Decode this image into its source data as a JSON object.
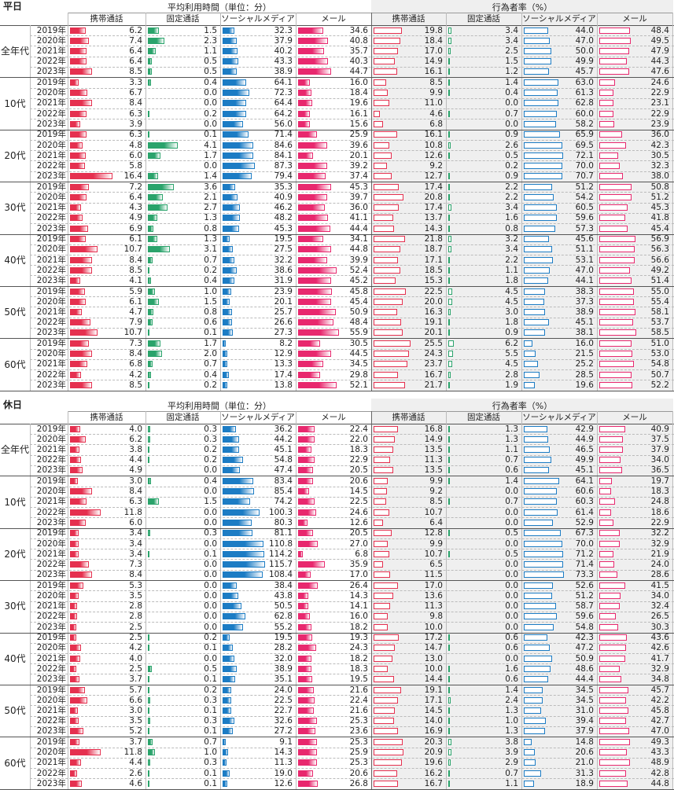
{
  "chart_data": [
    {
      "type": "table",
      "title": "平日",
      "group_headers": [
        "平均利用時間（単位：分）",
        "行為者率（%）"
      ],
      "columns": [
        "携帯通話",
        "固定通話",
        "ソーシャルメディア",
        "メール"
      ],
      "age_groups": [
        "全年代",
        "10代",
        "20代",
        "30代",
        "40代",
        "50代",
        "60代"
      ],
      "years": [
        "2019年",
        "2020年",
        "2021年",
        "2022年",
        "2023年"
      ],
      "time_values": [
        [
          [
            6.2,
            1.5,
            32.3,
            34.6
          ],
          [
            7.4,
            2.3,
            37.9,
            40.8
          ],
          [
            6.4,
            1.1,
            40.2,
            35.7
          ],
          [
            6.4,
            0.5,
            43.3,
            40.3
          ],
          [
            8.5,
            0.5,
            38.9,
            44.7
          ]
        ],
        [
          [
            3.3,
            0.4,
            64.1,
            16.0
          ],
          [
            6.7,
            0.0,
            72.3,
            18.4
          ],
          [
            8.4,
            0.0,
            64.4,
            19.6
          ],
          [
            6.3,
            0.2,
            64.2,
            16.1
          ],
          [
            3.9,
            0.0,
            56.0,
            15.6
          ]
        ],
        [
          [
            6.3,
            0.1,
            71.4,
            25.9
          ],
          [
            4.8,
            4.1,
            84.6,
            39.6
          ],
          [
            6.0,
            1.7,
            84.1,
            20.1
          ],
          [
            5.8,
            0.0,
            87.3,
            39.2
          ],
          [
            16.4,
            1.4,
            79.4,
            37.4
          ]
        ],
        [
          [
            7.2,
            3.6,
            35.3,
            45.3
          ],
          [
            6.4,
            2.1,
            40.9,
            39.7
          ],
          [
            4.3,
            2.7,
            46.2,
            36.0
          ],
          [
            4.9,
            1.3,
            48.2,
            41.1
          ],
          [
            6.9,
            0.8,
            45.3,
            44.4
          ]
        ],
        [
          [
            6.1,
            1.3,
            19.5,
            34.1
          ],
          [
            10.7,
            3.1,
            27.5,
            44.8
          ],
          [
            8.4,
            0.7,
            32.2,
            39.9
          ],
          [
            8.5,
            0.2,
            38.6,
            52.4
          ],
          [
            4.1,
            0.4,
            31.9,
            45.2
          ]
        ],
        [
          [
            5.9,
            1.0,
            23.9,
            45.8
          ],
          [
            6.1,
            1.5,
            20.1,
            45.4
          ],
          [
            4.7,
            0.8,
            25.7,
            50.9
          ],
          [
            7.9,
            0.6,
            26.6,
            48.4
          ],
          [
            10.7,
            0.1,
            27.3,
            55.9
          ]
        ],
        [
          [
            7.3,
            1.7,
            8.2,
            30.5
          ],
          [
            8.4,
            2.0,
            12.9,
            44.5
          ],
          [
            6.8,
            0.7,
            13.3,
            34.5
          ],
          [
            4.2,
            0.4,
            17.4,
            29.8
          ],
          [
            8.5,
            0.2,
            13.8,
            52.1
          ]
        ]
      ],
      "rate_values": [
        [
          [
            19.8,
            3.4,
            44.0,
            48.4
          ],
          [
            18.4,
            3.4,
            47.0,
            49.5
          ],
          [
            17.0,
            2.5,
            50.0,
            47.9
          ],
          [
            14.9,
            1.5,
            49.9,
            44.3
          ],
          [
            16.1,
            1.2,
            45.7,
            47.6
          ]
        ],
        [
          [
            8.5,
            1.4,
            63.0,
            24.6
          ],
          [
            9.9,
            0.4,
            61.3,
            22.9
          ],
          [
            11.0,
            0.0,
            62.8,
            23.1
          ],
          [
            4.6,
            0.7,
            60.0,
            22.9
          ],
          [
            6.8,
            0.0,
            58.2,
            23.9
          ]
        ],
        [
          [
            16.1,
            0.9,
            65.9,
            36.0
          ],
          [
            10.8,
            2.6,
            69.5,
            42.3
          ],
          [
            12.6,
            0.5,
            72.1,
            30.5
          ],
          [
            9.2,
            0.2,
            70.0,
            32.3
          ],
          [
            12.7,
            0.9,
            70.7,
            38.0
          ]
        ],
        [
          [
            17.4,
            2.2,
            51.2,
            50.8
          ],
          [
            20.8,
            2.2,
            54.2,
            51.2
          ],
          [
            17.4,
            3.4,
            60.5,
            45.3
          ],
          [
            13.7,
            1.6,
            59.6,
            41.8
          ],
          [
            14.3,
            0.8,
            57.3,
            45.4
          ]
        ],
        [
          [
            21.8,
            3.2,
            45.6,
            56.9
          ],
          [
            18.7,
            3.4,
            51.1,
            56.3
          ],
          [
            17.1,
            2.2,
            53.1,
            56.6
          ],
          [
            18.5,
            1.1,
            47.0,
            49.2
          ],
          [
            15.3,
            1.8,
            44.1,
            51.4
          ]
        ],
        [
          [
            22.5,
            4.5,
            38.3,
            55.0
          ],
          [
            20.0,
            4.5,
            37.3,
            55.4
          ],
          [
            16.3,
            3.0,
            38.9,
            58.1
          ],
          [
            19.1,
            1.8,
            45.1,
            53.7
          ],
          [
            20.1,
            0.9,
            38.1,
            58.5
          ]
        ],
        [
          [
            25.5,
            6.2,
            16.0,
            51.0
          ],
          [
            24.3,
            5.5,
            21.5,
            53.0
          ],
          [
            23.7,
            4.5,
            25.2,
            54.8
          ],
          [
            16.7,
            2.8,
            28.5,
            50.7
          ],
          [
            21.7,
            1.9,
            19.6,
            52.2
          ]
        ]
      ]
    },
    {
      "type": "table",
      "title": "休日",
      "group_headers": [
        "平均利用時間（単位：分）",
        "行為者率（%）"
      ],
      "columns": [
        "携帯通話",
        "固定通話",
        "ソーシャルメディア",
        "メール"
      ],
      "age_groups": [
        "全年代",
        "10代",
        "20代",
        "30代",
        "40代",
        "50代",
        "60代"
      ],
      "years": [
        "2019年",
        "2020年",
        "2021年",
        "2022年",
        "2023年"
      ],
      "time_values": [
        [
          [
            4.0,
            0.3,
            36.2,
            22.4
          ],
          [
            6.2,
            0.3,
            44.2,
            22.0
          ],
          [
            3.8,
            0.2,
            45.1,
            18.3
          ],
          [
            4.4,
            0.2,
            54.8,
            22.9
          ],
          [
            4.9,
            0.0,
            47.4,
            20.5
          ]
        ],
        [
          [
            3.0,
            0.4,
            83.4,
            20.6
          ],
          [
            8.4,
            0.0,
            85.4,
            14.5
          ],
          [
            6.3,
            1.5,
            74.2,
            22.5
          ],
          [
            11.8,
            0.0,
            100.3,
            24.6
          ],
          [
            6.0,
            0.0,
            80.3,
            12.6
          ]
        ],
        [
          [
            3.4,
            0.3,
            81.1,
            20.5
          ],
          [
            3.4,
            0.0,
            110.8,
            27.0
          ],
          [
            3.4,
            0.1,
            114.2,
            6.8
          ],
          [
            7.3,
            0.0,
            115.7,
            35.9
          ],
          [
            8.4,
            0.0,
            108.4,
            17.0
          ]
        ],
        [
          [
            5.3,
            0.0,
            38.4,
            26.4
          ],
          [
            3.5,
            0.0,
            43.8,
            14.3
          ],
          [
            2.8,
            0.0,
            50.5,
            14.1
          ],
          [
            2.8,
            0.0,
            62.8,
            16.0
          ],
          [
            2.5,
            0.0,
            55.2,
            18.2
          ]
        ],
        [
          [
            2.5,
            0.2,
            19.5,
            19.3
          ],
          [
            4.2,
            0.1,
            28.2,
            24.3
          ],
          [
            4.0,
            0.0,
            32.0,
            18.2
          ],
          [
            2.5,
            0.5,
            38.9,
            18.3
          ],
          [
            3.7,
            0.1,
            35.1,
            19.5
          ]
        ],
        [
          [
            5.7,
            0.2,
            24.0,
            21.6
          ],
          [
            6.6,
            0.3,
            22.5,
            22.4
          ],
          [
            3.0,
            0.1,
            22.7,
            21.6
          ],
          [
            3.5,
            0.3,
            32.6,
            25.3
          ],
          [
            5.2,
            0.1,
            27.2,
            23.6
          ]
        ],
        [
          [
            3.7,
            0.7,
            9.1,
            25.3
          ],
          [
            11.8,
            1.0,
            14.3,
            25.9
          ],
          [
            4.4,
            0.3,
            11.3,
            25.3
          ],
          [
            2.6,
            0.1,
            19.0,
            20.6
          ],
          [
            4.6,
            0.1,
            12.6,
            26.8
          ]
        ]
      ],
      "rate_values": [
        [
          [
            16.8,
            1.3,
            42.9,
            40.9
          ],
          [
            14.9,
            1.3,
            44.9,
            37.5
          ],
          [
            13.5,
            1.1,
            46.5,
            37.9
          ],
          [
            11.3,
            0.7,
            49.9,
            34.0
          ],
          [
            13.5,
            0.6,
            45.1,
            36.5
          ]
        ],
        [
          [
            9.9,
            1.4,
            64.1,
            19.7
          ],
          [
            9.2,
            0.0,
            60.6,
            18.3
          ],
          [
            8.5,
            0.7,
            60.3,
            24.8
          ],
          [
            10.7,
            0.0,
            61.4,
            18.6
          ],
          [
            6.4,
            0.0,
            52.9,
            22.9
          ]
        ],
        [
          [
            12.8,
            0.5,
            67.3,
            32.2
          ],
          [
            9.9,
            0.0,
            70.0,
            32.9
          ],
          [
            10.7,
            0.5,
            71.2,
            21.9
          ],
          [
            6.5,
            0.0,
            71.4,
            24.0
          ],
          [
            11.5,
            0.0,
            73.3,
            28.6
          ]
        ],
        [
          [
            17.0,
            0.0,
            52.6,
            41.5
          ],
          [
            13.6,
            0.0,
            51.2,
            34.0
          ],
          [
            11.3,
            0.0,
            58.7,
            32.4
          ],
          [
            9.8,
            0.0,
            59.6,
            26.5
          ],
          [
            10.0,
            0.0,
            54.8,
            30.3
          ]
        ],
        [
          [
            17.2,
            0.6,
            42.3,
            43.6
          ],
          [
            14.7,
            0.6,
            47.2,
            42.6
          ],
          [
            13.0,
            0.0,
            50.9,
            41.7
          ],
          [
            10.0,
            1.6,
            48.6,
            32.9
          ],
          [
            14.4,
            0.6,
            44.4,
            34.8
          ]
        ],
        [
          [
            19.1,
            1.4,
            34.5,
            45.7
          ],
          [
            17.1,
            2.4,
            34.5,
            42.2
          ],
          [
            14.5,
            1.3,
            31.0,
            45.8
          ],
          [
            14.0,
            1.0,
            39.4,
            42.7
          ],
          [
            16.9,
            1.3,
            37.9,
            47.0
          ]
        ],
        [
          [
            20.3,
            3.8,
            14.8,
            49.3
          ],
          [
            20.9,
            3.9,
            20.6,
            43.3
          ],
          [
            19.6,
            2.9,
            21.0,
            48.9
          ],
          [
            16.2,
            0.7,
            31.3,
            42.8
          ],
          [
            16.7,
            1.1,
            18.9,
            44.8
          ]
        ]
      ]
    }
  ],
  "colors": {
    "mobile_call": "#e5304f",
    "fixed_call": "#2aa36b",
    "social_media": "#1c7cc4",
    "email": "#e8286e",
    "rate_section_bg": "#efefef",
    "border": "#888888"
  }
}
